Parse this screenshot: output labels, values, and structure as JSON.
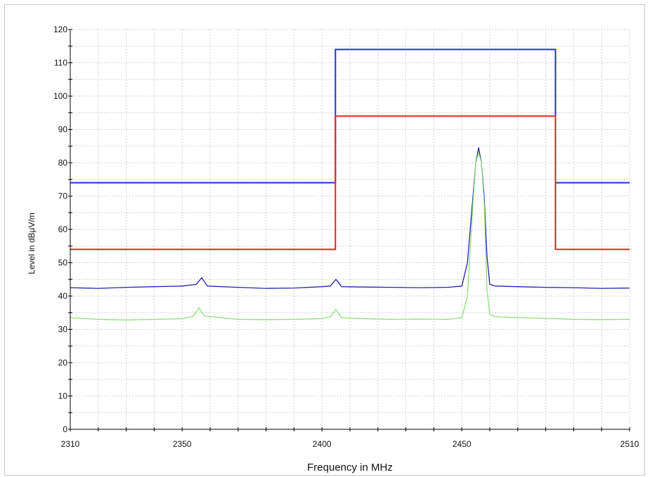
{
  "chart_data": {
    "type": "line",
    "title": "",
    "xlabel": "Frequency in MHz",
    "ylabel": "Level in dBµV/m",
    "xlim": [
      2310,
      2510
    ],
    "ylim": [
      0,
      120
    ],
    "x_ticks": [
      2310,
      2350,
      2400,
      2450,
      2510
    ],
    "y_ticks": [
      0,
      10,
      20,
      30,
      40,
      50,
      60,
      70,
      80,
      90,
      100,
      110,
      120
    ],
    "grid": true,
    "legend": "none",
    "series": [
      {
        "color": "#1f2fd6",
        "style": "step",
        "x": [
          2310,
          2404.8,
          2404.8,
          2483.5,
          2483.5,
          2510
        ],
        "y": [
          74,
          74,
          114,
          114,
          74,
          74
        ]
      },
      {
        "color": "#e02020",
        "style": "step",
        "x": [
          2310,
          2404.8,
          2404.8,
          2483.5,
          2483.5,
          2510
        ],
        "y": [
          54,
          54,
          94,
          94,
          54,
          54
        ]
      },
      {
        "color": "#2323b0",
        "style": "trace",
        "x": [
          2310,
          2320,
          2330,
          2340,
          2350,
          2355,
          2357,
          2359,
          2370,
          2380,
          2390,
          2400,
          2403,
          2405,
          2407,
          2415,
          2425,
          2435,
          2445,
          2450,
          2452,
          2454,
          2455,
          2456,
          2457,
          2458,
          2459,
          2460,
          2462,
          2470,
          2480,
          2490,
          2500,
          2510
        ],
        "y": [
          42.5,
          42.3,
          42.6,
          42.8,
          43.0,
          43.5,
          45.5,
          43.0,
          42.6,
          42.3,
          42.4,
          42.8,
          43.0,
          45.0,
          42.8,
          42.7,
          42.6,
          42.5,
          42.6,
          43.0,
          50.0,
          70.0,
          80.0,
          84.5,
          80.0,
          70.0,
          52.0,
          43.5,
          43.0,
          42.8,
          42.6,
          42.5,
          42.3,
          42.4
        ]
      },
      {
        "color": "#8ee07a",
        "style": "trace",
        "x": [
          2310,
          2320,
          2330,
          2340,
          2350,
          2354,
          2356,
          2358,
          2370,
          2380,
          2390,
          2400,
          2403,
          2405,
          2407,
          2415,
          2425,
          2435,
          2445,
          2450,
          2452,
          2454,
          2455,
          2456,
          2457,
          2458,
          2459,
          2460,
          2462,
          2470,
          2480,
          2490,
          2500,
          2510
        ],
        "y": [
          33.5,
          33.0,
          32.8,
          33.0,
          33.2,
          34.0,
          36.5,
          34.0,
          33.0,
          32.9,
          33.0,
          33.2,
          33.8,
          36.0,
          33.5,
          33.2,
          33.0,
          33.1,
          33.0,
          33.5,
          40.0,
          68.0,
          80.0,
          83.0,
          80.0,
          68.0,
          42.0,
          34.5,
          33.8,
          33.5,
          33.3,
          33.0,
          32.9,
          33.0
        ]
      }
    ]
  }
}
